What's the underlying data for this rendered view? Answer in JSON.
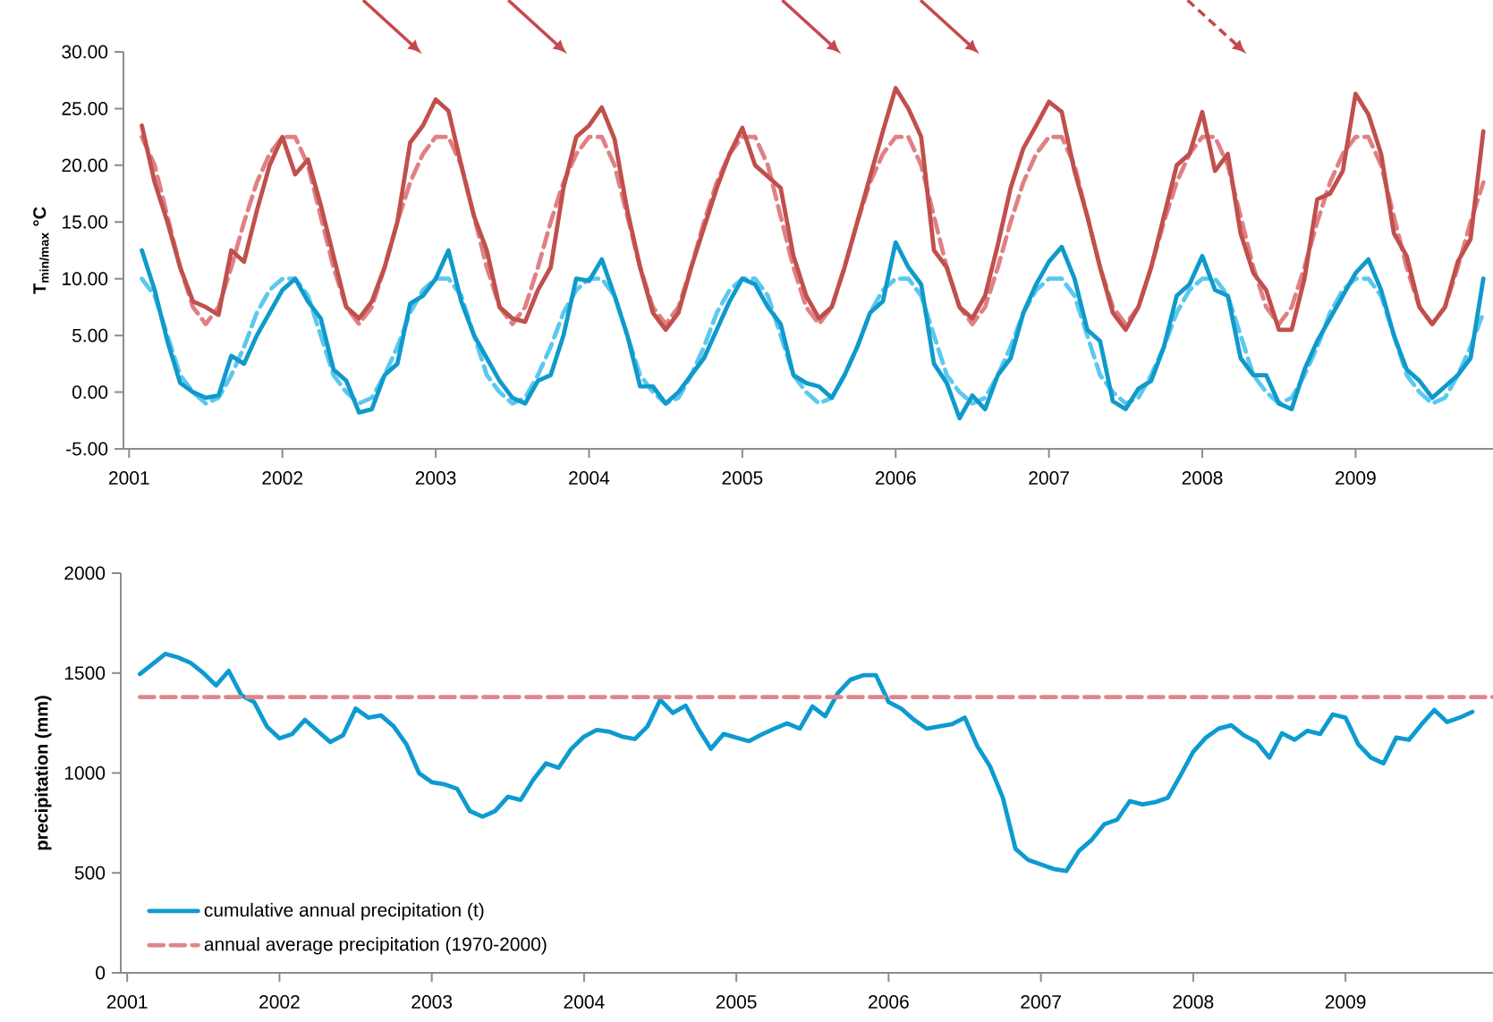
{
  "chart_data": [
    {
      "type": "line",
      "ylabel": "T$_{min/max}$ °C",
      "x": [
        "2001-02",
        "2001-03",
        "2001-04",
        "2001-05",
        "2001-06",
        "2001-07",
        "2001-08",
        "2001-09",
        "2001-10",
        "2001-11",
        "2001-12",
        "2002-01",
        "2002-02",
        "2002-03",
        "2002-04",
        "2002-05",
        "2002-06",
        "2002-07",
        "2002-08",
        "2002-09",
        "2002-10",
        "2002-11",
        "2002-12",
        "2003-01",
        "2003-02",
        "2003-03",
        "2003-04",
        "2003-05",
        "2003-06",
        "2003-07",
        "2003-08",
        "2003-09",
        "2003-10",
        "2003-11",
        "2003-12",
        "2004-01",
        "2004-02",
        "2004-03",
        "2004-04",
        "2004-05",
        "2004-06",
        "2004-07",
        "2004-08",
        "2004-09",
        "2004-10",
        "2004-11",
        "2004-12",
        "2005-01",
        "2005-02",
        "2005-03",
        "2005-04",
        "2005-05",
        "2005-06",
        "2005-07",
        "2005-08",
        "2005-09",
        "2005-10",
        "2005-11",
        "2005-12",
        "2006-01",
        "2006-02",
        "2006-03",
        "2006-04",
        "2006-05",
        "2006-06",
        "2006-07",
        "2006-08",
        "2006-09",
        "2006-10",
        "2006-11",
        "2006-12",
        "2007-01",
        "2007-02",
        "2007-03",
        "2007-04",
        "2007-05",
        "2007-06",
        "2007-07",
        "2007-08",
        "2007-09",
        "2007-10",
        "2007-11",
        "2007-12",
        "2008-01",
        "2008-02",
        "2008-03",
        "2008-04",
        "2008-05",
        "2008-06",
        "2008-07",
        "2008-08",
        "2008-09",
        "2008-10",
        "2008-11",
        "2008-12",
        "2009-01",
        "2009-02",
        "2009-03",
        "2009-04",
        "2009-05",
        "2009-06",
        "2009-07",
        "2009-08",
        "2009-09",
        "2009-10",
        "2009-11"
      ],
      "xlim": [
        "2000-12-18",
        "2009-11-24"
      ],
      "xticks": [
        "2001",
        "2002",
        "2003",
        "2004",
        "2005",
        "2006",
        "2007",
        "2008",
        "2009"
      ],
      "ylim": [
        -5,
        30
      ],
      "yticks": [
        {
          "value": -5,
          "label": "-5.00"
        },
        {
          "value": 0,
          "label": "0.00"
        },
        {
          "value": 5,
          "label": "5.00"
        },
        {
          "value": 10,
          "label": "10.00"
        },
        {
          "value": 15,
          "label": "15.00"
        },
        {
          "value": 20,
          "label": "20.00"
        },
        {
          "value": 25,
          "label": "25.00"
        },
        {
          "value": 30,
          "label": "30.00"
        }
      ],
      "series": [
        {
          "color": "#e08085",
          "line_style": "dashed",
          "values": [
            22.5,
            20,
            15.5,
            11,
            7.5,
            6,
            7.5,
            11,
            15,
            18.5,
            21,
            22.5,
            22.5,
            20,
            15.5,
            11,
            7.5,
            6,
            7.5,
            11,
            15,
            18.5,
            21,
            22.5,
            22.5,
            20,
            15.5,
            11,
            7.5,
            6,
            7.5,
            11,
            15,
            18.5,
            21,
            22.5,
            22.5,
            20,
            15.5,
            11,
            7.5,
            6,
            7.5,
            11,
            15,
            18.5,
            21,
            22.5,
            22.5,
            20,
            15.5,
            11,
            7.5,
            6,
            7.5,
            11,
            15,
            18.5,
            21,
            22.5,
            22.5,
            20,
            15.5,
            11,
            7.5,
            6,
            7.5,
            11,
            15,
            18.5,
            21,
            22.5,
            22.5,
            20,
            15.5,
            11,
            7.5,
            6,
            7.5,
            11,
            15,
            18.5,
            21,
            22.5,
            22.5,
            20,
            15.5,
            11,
            7.5,
            6,
            7.5,
            11,
            15,
            18.5,
            21,
            22.5,
            22.5,
            20,
            15.5,
            11,
            7.5,
            6,
            7.5,
            11,
            15,
            18.5
          ]
        },
        {
          "color": "#c0504d",
          "line_style": "solid",
          "values": [
            23.5,
            18.5,
            15,
            11,
            8,
            7.5,
            6.8,
            12.5,
            11.5,
            16,
            20,
            22.5,
            19.2,
            20.5,
            16.5,
            12,
            7.5,
            6.5,
            8,
            11,
            15,
            22,
            23.5,
            25.8,
            24.8,
            20,
            15.5,
            12.5,
            7.5,
            6.5,
            6.2,
            9,
            11,
            18,
            22.5,
            23.5,
            25.1,
            22.3,
            16,
            11,
            7,
            5.5,
            7,
            11,
            14.5,
            18,
            21,
            23.3,
            20,
            19,
            18,
            12,
            8.5,
            6.5,
            7.5,
            11,
            15,
            19,
            23,
            26.8,
            25,
            22.5,
            12.5,
            11,
            7.5,
            6.5,
            8.5,
            13,
            18,
            21.5,
            23.5,
            25.6,
            24.7,
            19.5,
            15.5,
            11,
            7,
            5.5,
            7.5,
            11,
            15.5,
            20,
            21,
            24.7,
            19.5,
            21,
            14,
            10.5,
            9,
            5.5,
            5.5,
            10,
            17,
            17.5,
            19.5,
            26.3,
            24.5,
            21,
            14,
            12,
            7.5,
            6,
            7.5,
            11.5,
            13.5,
            23
          ]
        },
        {
          "color": "#5bc8ef",
          "line_style": "dashed",
          "values": [
            10,
            8.5,
            5,
            1.5,
            0,
            -1,
            -0.5,
            1.5,
            4,
            7,
            9,
            10,
            10,
            8.5,
            5,
            1.5,
            0,
            -1,
            -0.5,
            1.5,
            4,
            7,
            9,
            10,
            10,
            8.5,
            5,
            1.5,
            0,
            -1,
            -0.5,
            1.5,
            4,
            7,
            9,
            10,
            10,
            8.5,
            5,
            1.5,
            0,
            -1,
            -0.5,
            1.5,
            4,
            7,
            9,
            10,
            10,
            8.5,
            5,
            1.5,
            0,
            -1,
            -0.5,
            1.5,
            4,
            7,
            9,
            10,
            10,
            8.5,
            5,
            1.5,
            0,
            -1,
            -0.5,
            1.5,
            4,
            7,
            9,
            10,
            10,
            8.5,
            5,
            1.5,
            0,
            -1,
            -0.5,
            1.5,
            4,
            7,
            9,
            10,
            10,
            8.5,
            5,
            1.5,
            0,
            -1,
            -0.5,
            1.5,
            4,
            7,
            9,
            10,
            10,
            8.5,
            5,
            1.5,
            0,
            -1,
            -0.5,
            1.5,
            4,
            7
          ]
        },
        {
          "color": "#0f9acb",
          "line_style": "solid",
          "values": [
            12.5,
            9,
            4.5,
            0.8,
            0,
            -0.5,
            -0.3,
            3.2,
            2.5,
            5,
            7,
            9,
            10,
            8,
            6.5,
            2,
            1,
            -1.8,
            -1.5,
            1.5,
            2.5,
            7.8,
            8.5,
            10,
            12.5,
            8,
            5,
            3,
            1,
            -0.5,
            -1,
            1,
            1.5,
            5,
            10,
            9.8,
            11.7,
            8.5,
            5,
            0.5,
            0.5,
            -1,
            0,
            1.5,
            3,
            5.5,
            8,
            10,
            9.5,
            7.5,
            6,
            1.5,
            0.8,
            0.5,
            -0.5,
            1.5,
            4,
            7,
            8,
            13.2,
            11,
            9.5,
            2.5,
            0.8,
            -2.3,
            -0.3,
            -1.5,
            1.5,
            3,
            7,
            9.5,
            11.5,
            12.8,
            10,
            5.5,
            4.5,
            -0.8,
            -1.5,
            0.3,
            1,
            4,
            8.5,
            9.5,
            12,
            9,
            8.5,
            3,
            1.5,
            1.5,
            -1,
            -1.5,
            2,
            4.5,
            6.5,
            8.5,
            10.5,
            11.7,
            9,
            5,
            2,
            1,
            -0.5,
            0.5,
            1.5,
            3,
            10
          ]
        }
      ]
    },
    {
      "type": "line",
      "ylabel": "precipitation (mm)",
      "legend": "bottom left",
      "x": [
        "2001-02",
        "2001-03",
        "2001-04",
        "2001-05",
        "2001-06",
        "2001-07",
        "2001-08",
        "2001-09",
        "2001-10",
        "2001-11",
        "2001-12",
        "2002-01",
        "2002-02",
        "2002-03",
        "2002-04",
        "2002-05",
        "2002-06",
        "2002-07",
        "2002-08",
        "2002-09",
        "2002-10",
        "2002-11",
        "2002-12",
        "2003-01",
        "2003-02",
        "2003-03",
        "2003-04",
        "2003-05",
        "2003-06",
        "2003-07",
        "2003-08",
        "2003-09",
        "2003-10",
        "2003-11",
        "2003-12",
        "2004-01",
        "2004-02",
        "2004-03",
        "2004-04",
        "2004-05",
        "2004-06",
        "2004-07",
        "2004-08",
        "2004-09",
        "2004-10",
        "2004-11",
        "2004-12",
        "2005-01",
        "2005-02",
        "2005-03",
        "2005-04",
        "2005-05",
        "2005-06",
        "2005-07",
        "2005-08",
        "2005-09",
        "2005-10",
        "2005-11",
        "2005-12",
        "2006-01",
        "2006-02",
        "2006-03",
        "2006-04",
        "2006-05",
        "2006-06",
        "2006-07",
        "2006-08",
        "2006-09",
        "2006-10",
        "2006-11",
        "2006-12",
        "2007-01",
        "2007-02",
        "2007-03",
        "2007-04",
        "2007-05",
        "2007-06",
        "2007-07",
        "2007-08",
        "2007-09",
        "2007-10",
        "2007-11",
        "2007-12",
        "2008-01",
        "2008-02",
        "2008-03",
        "2008-04",
        "2008-05",
        "2008-06",
        "2008-07",
        "2008-08",
        "2008-09",
        "2008-10",
        "2008-11",
        "2008-12",
        "2009-01",
        "2009-02",
        "2009-03",
        "2009-04",
        "2009-05",
        "2009-06",
        "2009-07",
        "2009-08",
        "2009-09",
        "2009-10",
        "2009-11"
      ],
      "xlim": [
        "2000-12-16",
        "2009-12-20"
      ],
      "xticks": [
        "2001",
        "2002",
        "2003",
        "2004",
        "2005",
        "2006",
        "2007",
        "2008",
        "2009"
      ],
      "ylim": [
        0,
        2000
      ],
      "yticks": [
        0,
        500,
        1000,
        1500,
        2000
      ],
      "series": [
        {
          "name": "cumulative annual precipitation (t)",
          "color": "#0d9bd0",
          "line_style": "solid",
          "values": [
            1495,
            1545,
            1596,
            1578,
            1551,
            1500,
            1438,
            1511,
            1389,
            1355,
            1233,
            1173,
            1195,
            1266,
            1210,
            1155,
            1188,
            1322,
            1277,
            1288,
            1233,
            1144,
            999,
            954,
            943,
            921,
            810,
            781,
            810,
            881,
            865,
            966,
            1048,
            1026,
            1121,
            1182,
            1215,
            1206,
            1182,
            1170,
            1233,
            1366,
            1300,
            1337,
            1222,
            1121,
            1195,
            1177,
            1159,
            1193,
            1222,
            1248,
            1222,
            1333,
            1284,
            1400,
            1467,
            1489,
            1489,
            1355,
            1322,
            1266,
            1222,
            1233,
            1244,
            1277,
            1133,
            1032,
            876,
            620,
            565,
            542,
            520,
            509,
            610,
            665,
            744,
            766,
            859,
            843,
            854,
            876,
            988,
            1106,
            1177,
            1222,
            1239,
            1188,
            1155,
            1077,
            1199,
            1166,
            1211,
            1195,
            1293,
            1277,
            1144,
            1077,
            1048,
            1177,
            1166,
            1244,
            1315,
            1255,
            1277,
            1306
          ]
        },
        {
          "name": "annual average precipitation (1970-2000)",
          "color": "#df868a",
          "line_style": "dashed",
          "x": [
            "2001-02",
            "2009-12-20"
          ],
          "values": [
            1380,
            1380
          ]
        }
      ]
    }
  ]
}
